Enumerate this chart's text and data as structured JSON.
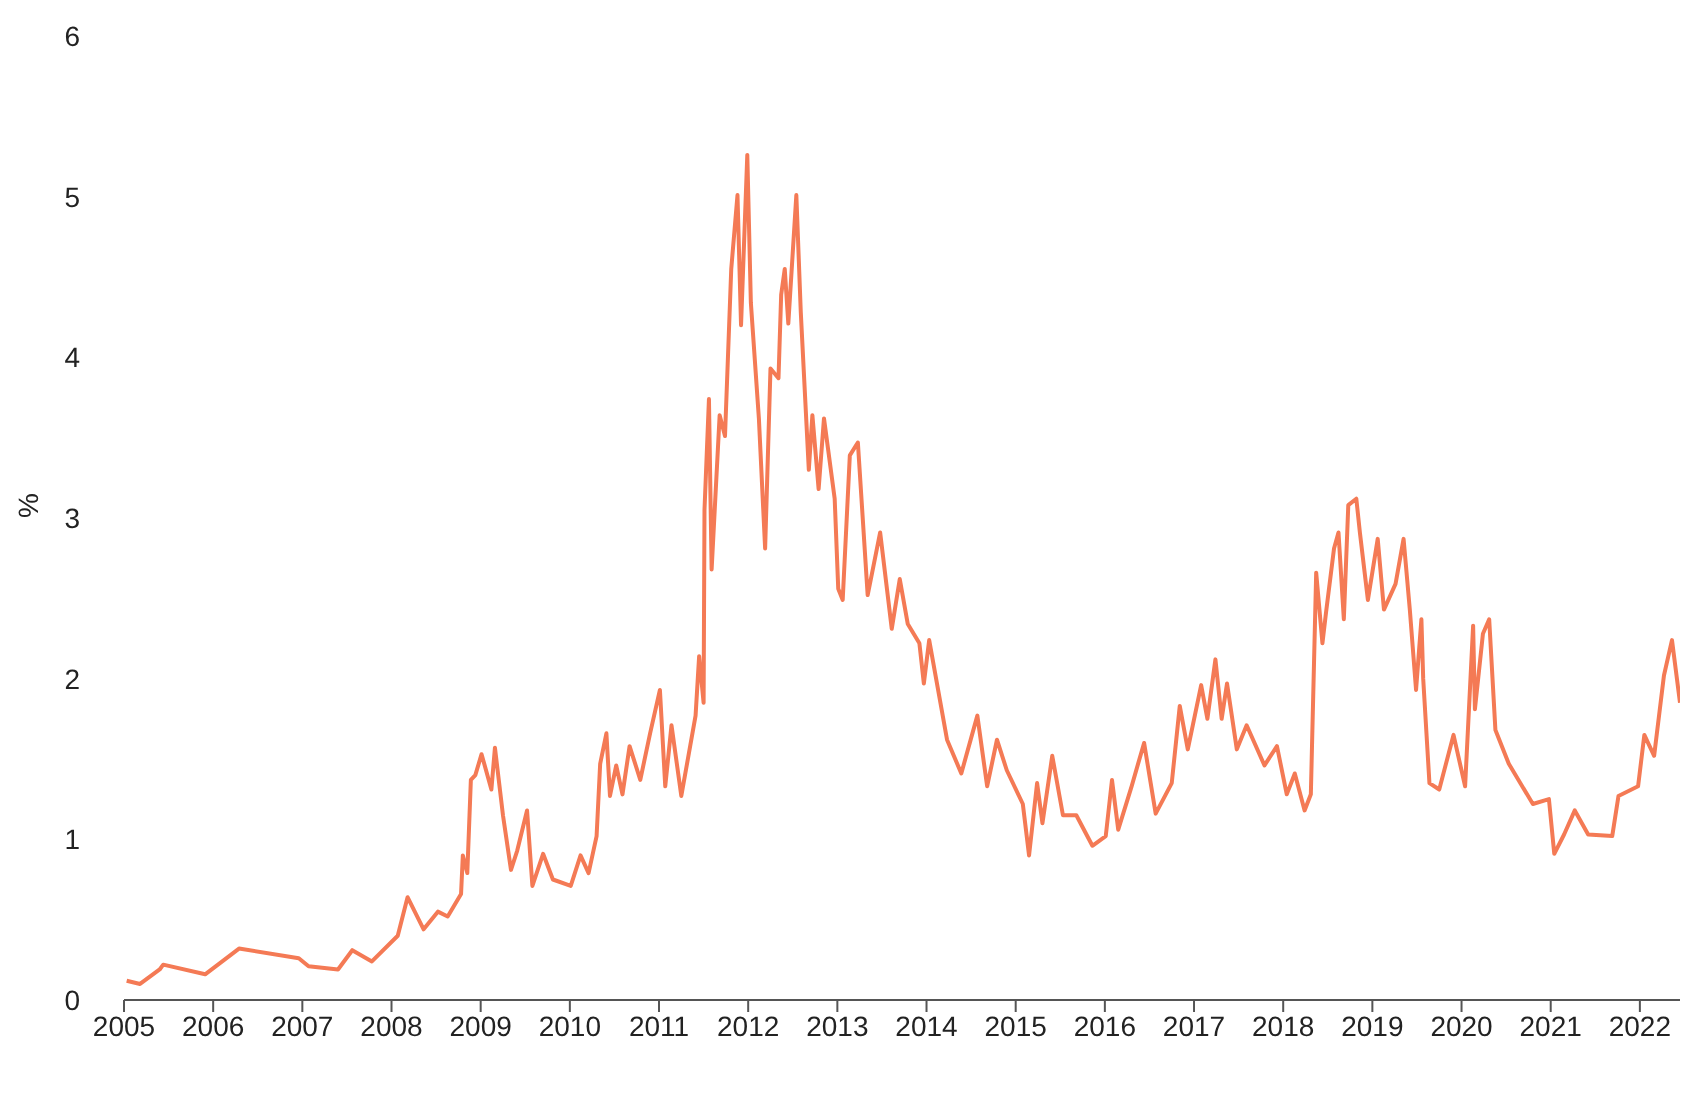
{
  "chart_data": {
    "type": "line",
    "ylabel": "%",
    "xlim": [
      2005,
      2022.45
    ],
    "xticks": [
      2005,
      2006,
      2007,
      2008,
      2009,
      2010,
      2011,
      2012,
      2013,
      2014,
      2015,
      2016,
      2017,
      2018,
      2019,
      2020,
      2021,
      2022
    ],
    "ylim": [
      0,
      6
    ],
    "yticks": [
      0,
      1,
      2,
      3,
      4,
      5,
      6
    ],
    "grid": false,
    "marker": "none",
    "line_style": "solid",
    "series": [
      {
        "color": "#f47a55",
        "x": [
          2005.03,
          2005.18,
          2005.4,
          2005.44,
          2005.91,
          2006.29,
          2006.96,
          2007.07,
          2007.4,
          2007.56,
          2007.78,
          2008.07,
          2008.18,
          2008.36,
          2008.52,
          2008.63,
          2008.78,
          2008.8,
          2008.85,
          2008.89,
          2008.94,
          2009.01,
          2009.12,
          2009.16,
          2009.25,
          2009.34,
          2009.41,
          2009.52,
          2009.58,
          2009.7,
          2009.81,
          2010.01,
          2010.12,
          2010.21,
          2010.3,
          2010.34,
          2010.41,
          2010.45,
          2010.52,
          2010.59,
          2010.67,
          2010.79,
          2010.9,
          2011.01,
          2011.07,
          2011.14,
          2011.25,
          2011.41,
          2011.45,
          2011.5,
          2011.51,
          2011.56,
          2011.59,
          2011.68,
          2011.74,
          2011.81,
          2011.88,
          2011.92,
          2011.99,
          2012.03,
          2012.12,
          2012.19,
          2012.25,
          2012.34,
          2012.37,
          2012.41,
          2012.45,
          2012.54,
          2012.59,
          2012.68,
          2012.72,
          2012.79,
          2012.85,
          2012.97,
          2013.01,
          2013.06,
          2013.14,
          2013.23,
          2013.34,
          2013.48,
          2013.61,
          2013.7,
          2013.79,
          2013.92,
          2013.97,
          2014.03,
          2014.23,
          2014.39,
          2014.57,
          2014.68,
          2014.79,
          2014.9,
          2015.08,
          2015.15,
          2015.24,
          2015.3,
          2015.41,
          2015.53,
          2015.68,
          2015.86,
          2016.01,
          2016.08,
          2016.15,
          2016.3,
          2016.44,
          2016.57,
          2016.75,
          2016.84,
          2016.93,
          2017.08,
          2017.15,
          2017.24,
          2017.31,
          2017.37,
          2017.48,
          2017.59,
          2017.79,
          2017.93,
          2018.04,
          2018.13,
          2018.24,
          2018.31,
          2018.37,
          2018.44,
          2018.48,
          2018.57,
          2018.62,
          2018.68,
          2018.73,
          2018.82,
          2018.86,
          2018.95,
          2019.06,
          2019.13,
          2019.26,
          2019.35,
          2019.42,
          2019.49,
          2019.55,
          2019.57,
          2019.64,
          2019.75,
          2019.91,
          2020.04,
          2020.13,
          2020.15,
          2020.24,
          2020.31,
          2020.38,
          2020.53,
          2020.8,
          2020.98,
          2021.04,
          2021.15,
          2021.27,
          2021.42,
          2021.69,
          2021.76,
          2021.98,
          2022.05,
          2022.16,
          2022.27,
          2022.36,
          2022.45
        ],
        "values": [
          0.12,
          0.1,
          0.19,
          0.22,
          0.16,
          0.32,
          0.26,
          0.21,
          0.19,
          0.31,
          0.24,
          0.4,
          0.64,
          0.44,
          0.55,
          0.52,
          0.66,
          0.9,
          0.79,
          1.37,
          1.4,
          1.53,
          1.31,
          1.57,
          1.15,
          0.81,
          0.93,
          1.18,
          0.71,
          0.91,
          0.75,
          0.71,
          0.9,
          0.79,
          1.02,
          1.47,
          1.66,
          1.27,
          1.46,
          1.28,
          1.58,
          1.37,
          1.66,
          1.93,
          1.33,
          1.71,
          1.27,
          1.77,
          2.14,
          1.85,
          3.05,
          3.74,
          2.68,
          3.64,
          3.51,
          4.55,
          5.01,
          4.2,
          5.26,
          4.34,
          3.62,
          2.81,
          3.93,
          3.87,
          4.39,
          4.55,
          4.21,
          5.01,
          4.28,
          3.3,
          3.64,
          3.18,
          3.62,
          3.12,
          2.56,
          2.49,
          3.39,
          3.47,
          2.52,
          2.91,
          2.31,
          2.62,
          2.34,
          2.22,
          1.97,
          2.24,
          1.62,
          1.41,
          1.77,
          1.33,
          1.62,
          1.43,
          1.22,
          0.9,
          1.35,
          1.1,
          1.52,
          1.15,
          1.15,
          0.96,
          1.02,
          1.37,
          1.06,
          1.33,
          1.6,
          1.16,
          1.35,
          1.83,
          1.56,
          1.96,
          1.75,
          2.12,
          1.75,
          1.97,
          1.56,
          1.71,
          1.46,
          1.58,
          1.28,
          1.41,
          1.18,
          1.28,
          2.66,
          2.22,
          2.41,
          2.81,
          2.91,
          2.37,
          3.08,
          3.12,
          2.91,
          2.49,
          2.87,
          2.43,
          2.59,
          2.87,
          2.43,
          1.93,
          2.37,
          2.0,
          1.35,
          1.31,
          1.65,
          1.33,
          2.33,
          1.81,
          2.28,
          2.37,
          1.68,
          1.47,
          1.22,
          1.25,
          0.91,
          1.03,
          1.18,
          1.03,
          1.02,
          1.27,
          1.33,
          1.65,
          1.52,
          2.02,
          2.24,
          1.85
        ]
      }
    ]
  }
}
